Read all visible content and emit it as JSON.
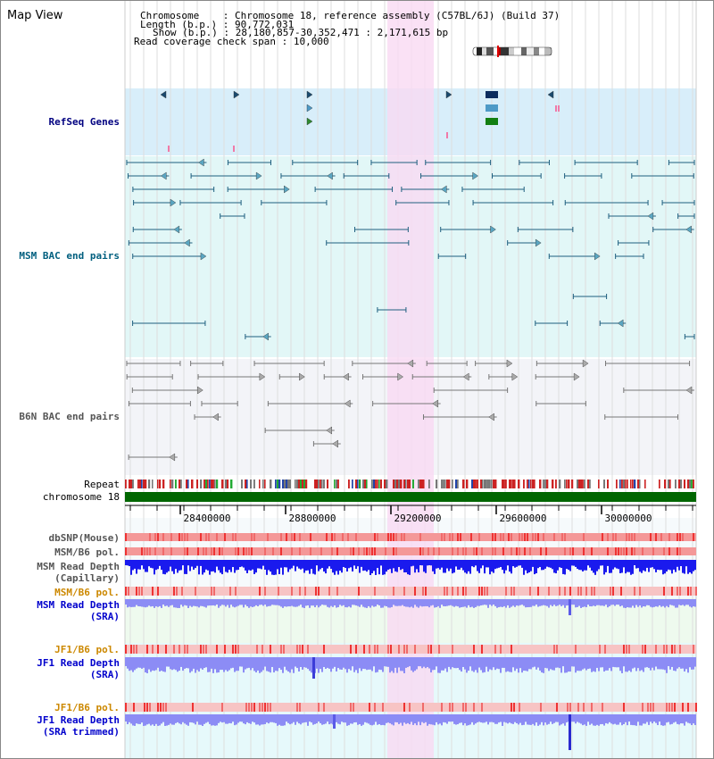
{
  "page_title": "Map View",
  "header": {
    "chromosome_label": "Chromosome",
    "chromosome_value": "Chromosome 18, reference assembly (C57BL/6J) (Build 37)",
    "length_label": "Length (b.p.)",
    "length_value": "90,772,031",
    "show_label": "Show (b.p.)",
    "show_value": "28,180,857-30,352,471 : 2,171,615 bp",
    "coverage_label": "Read coverage check span",
    "coverage_value": "10,000"
  },
  "tracks": {
    "refseq": "RefSeq Genes",
    "msm_bac": "MSM BAC end pairs",
    "b6n_bac": "B6N BAC end pairs",
    "repeat": "Repeat",
    "chromosome": "chromosome 18",
    "dbsnp": "dbSNP(Mouse)",
    "msm_b6_pol_1": "MSM/B6 pol.",
    "msm_read_depth_cap_1": "MSM Read Depth",
    "msm_read_depth_cap_2": "(Capillary)",
    "msm_b6_pol_2": "MSM/B6 pol.",
    "msm_read_depth_sra_1": "MSM Read Depth",
    "msm_read_depth_sra_2": "(SRA)",
    "jf1_b6_pol_1": "JF1/B6 pol.",
    "jf1_read_depth_sra_1": "JF1 Read Depth",
    "jf1_read_depth_sra_2": "(SRA)",
    "jf1_b6_pol_2": "JF1/B6 pol.",
    "jf1_read_depth_trim_1": "JF1 Read Depth",
    "jf1_read_depth_trim_2": "(SRA trimmed)"
  },
  "ruler": {
    "ticks": [
      "28400000",
      "28800000",
      "29200000",
      "29600000",
      "30000000"
    ]
  },
  "colors": {
    "refseq_bg": "#d8eefa",
    "msm_bac_bg": "#e2f7f7",
    "b6n_bac_bg": "#f3f4f8",
    "highlight": "#f9d9f2",
    "chromosome_bar": "#006600",
    "depth_dark": "#1a1aee",
    "depth_light": "#8c8cf5",
    "pol_red": "#ee3333"
  }
}
